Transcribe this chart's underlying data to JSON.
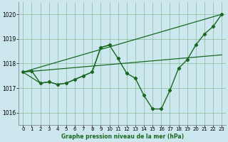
{
  "title": "Graphe pression niveau de la mer (hPa)",
  "bg_color": "#cce8ee",
  "grid_color": "#88bb99",
  "line_color": "#1a6820",
  "ylim": [
    1015.5,
    1020.5
  ],
  "xlim": [
    -0.5,
    23.5
  ],
  "y_ticks": [
    1016,
    1017,
    1018,
    1019,
    1020
  ],
  "x_ticks": [
    0,
    1,
    2,
    3,
    4,
    5,
    6,
    7,
    8,
    9,
    10,
    11,
    12,
    13,
    14,
    15,
    16,
    17,
    18,
    19,
    20,
    21,
    22,
    23
  ],
  "series_dotted_x": [
    0,
    1,
    2,
    3,
    4,
    5,
    6,
    7,
    8,
    9,
    10,
    11,
    12,
    13,
    14,
    15,
    16,
    17,
    18,
    19,
    20,
    21,
    22,
    23
  ],
  "series_dotted_y": [
    1017.65,
    1017.7,
    1017.2,
    1017.25,
    1017.15,
    1017.2,
    1017.35,
    1017.5,
    1017.65,
    1018.65,
    1018.75,
    1018.2,
    1017.6,
    1017.4,
    1016.7,
    1016.15,
    1016.15,
    1016.9,
    1017.8,
    1018.15,
    1018.75,
    1019.2,
    1019.5,
    1020.0
  ],
  "line1_x": [
    0,
    23
  ],
  "line1_y": [
    1017.65,
    1020.0
  ],
  "line2_x": [
    0,
    23
  ],
  "line2_y": [
    1017.65,
    1018.35
  ],
  "line3_x": [
    0,
    2,
    3,
    4,
    5,
    6,
    7,
    8,
    9,
    10
  ],
  "line3_y": [
    1017.65,
    1017.2,
    1017.25,
    1017.15,
    1017.2,
    1017.35,
    1017.5,
    1017.65,
    1018.65,
    1018.75
  ]
}
